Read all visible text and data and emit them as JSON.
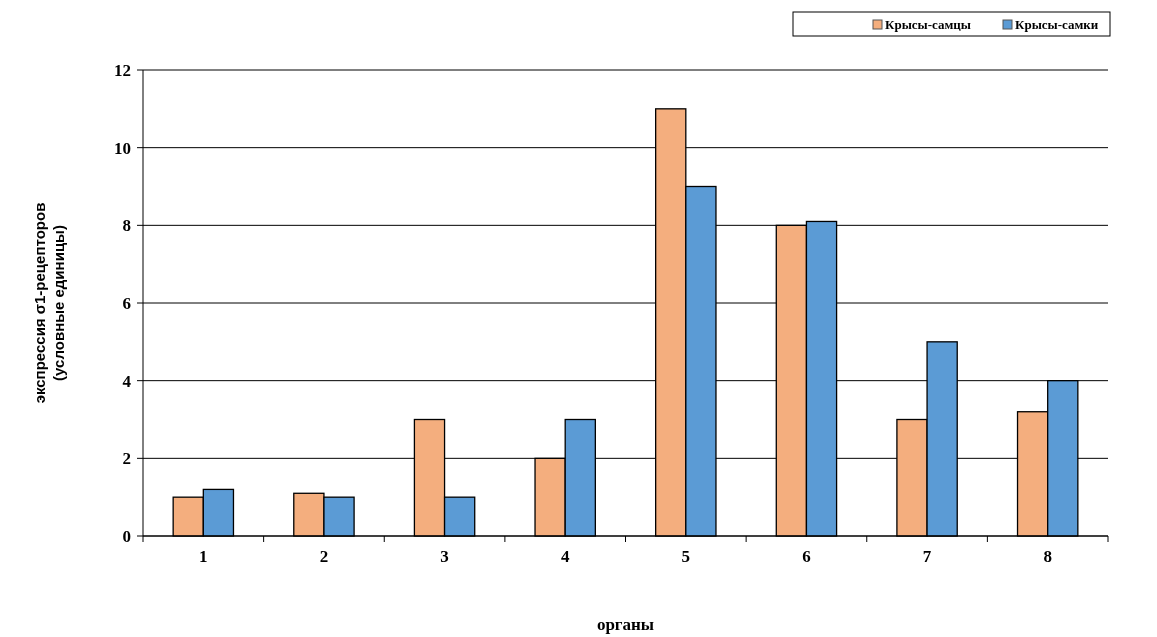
{
  "chart_data": {
    "type": "bar",
    "xlabel": "органы",
    "ylabel": "экспрессия σ1-рецепторов\n(условные единицы)",
    "categories": [
      "1",
      "2",
      "3",
      "4",
      "5",
      "6",
      "7",
      "8"
    ],
    "series": [
      {
        "name": "Крысы-самцы",
        "color": "#f4ae7e",
        "values": [
          1,
          1.1,
          3,
          2,
          11,
          8,
          3,
          3.2
        ]
      },
      {
        "name": "Крысы-самки",
        "color": "#5b9bd5",
        "values": [
          1.2,
          1,
          1,
          3,
          9,
          8.1,
          5,
          4
        ]
      }
    ],
    "ylim": [
      0,
      12
    ],
    "yticks": [
      0,
      2,
      4,
      6,
      8,
      10,
      12
    ],
    "grid": "y",
    "legend": "top right"
  }
}
